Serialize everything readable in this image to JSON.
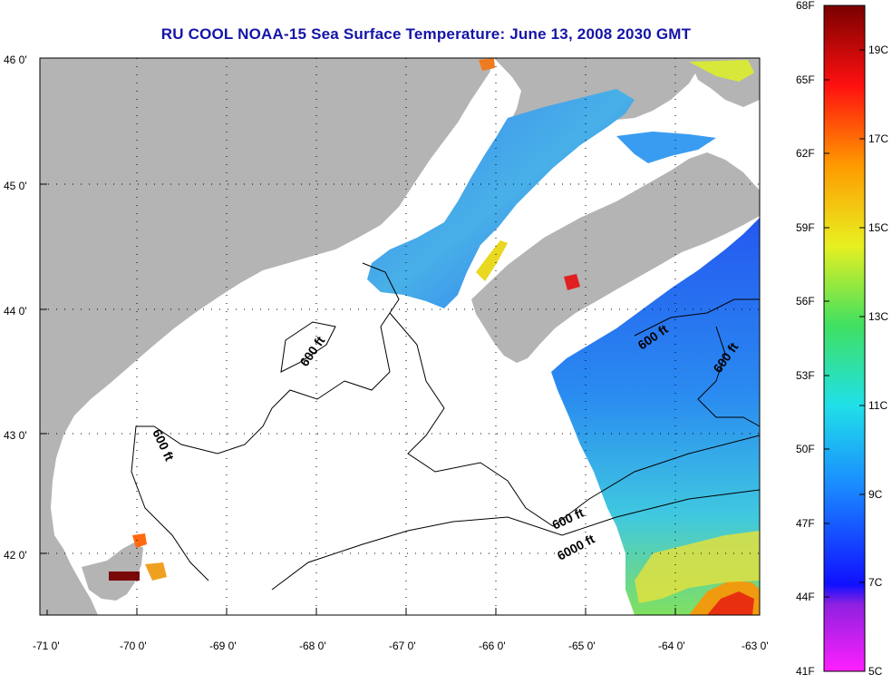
{
  "title": "RU COOL  NOAA-15  Sea Surface Temperature:  June 13, 2008 2030 GMT",
  "lon_labels": [
    "-71 0'",
    "-70 0'",
    "-69 0'",
    "-68 0'",
    "-67 0'",
    "-66 0'",
    "-65 0'",
    "-64 0'",
    "-63 0'"
  ],
  "lat_labels": [
    "46 0'",
    "45 0'",
    "44 0'",
    "43 0'",
    "42 0'"
  ],
  "colorbar": {
    "f_labels": [
      "68F",
      "65F",
      "62F",
      "59F",
      "56F",
      "53F",
      "50F",
      "47F",
      "44F",
      "41F"
    ],
    "c_labels": [
      "19C",
      "17C",
      "15C",
      "13C",
      "11C",
      "9C",
      "7C",
      "5C"
    ]
  },
  "isobath_labels": {
    "a": "600 ft",
    "b": "600 ft",
    "c": "600 ft",
    "d": "600 ft",
    "e": "600 ft",
    "f": "6000 ft"
  },
  "colors": {
    "land": "#b4b4b4",
    "cloud": "#ffffff",
    "title": "#1414a8",
    "water_cold": "#2a6cf0",
    "water_warm": "#f0d21e"
  }
}
